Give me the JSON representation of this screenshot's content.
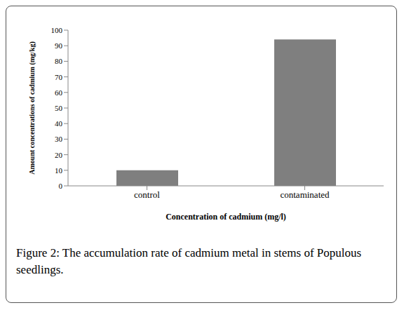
{
  "chart_data": {
    "type": "bar",
    "title": "Figure 2: The accumulation rate of cadmium metal in stems of Populous seedlings.",
    "x_label": "Concentration of cadmium (mg/l)",
    "y_label": "Amount concentrations of cadmium (mg/kg)",
    "categories": [
      "control",
      "contaminated"
    ],
    "values": [
      10,
      94
    ],
    "color": "#7f7f7f",
    "ylim": [
      0,
      100
    ],
    "yticks": [
      0,
      10,
      20,
      30,
      40,
      50,
      60,
      70,
      80,
      90,
      100
    ],
    "grid": false
  }
}
